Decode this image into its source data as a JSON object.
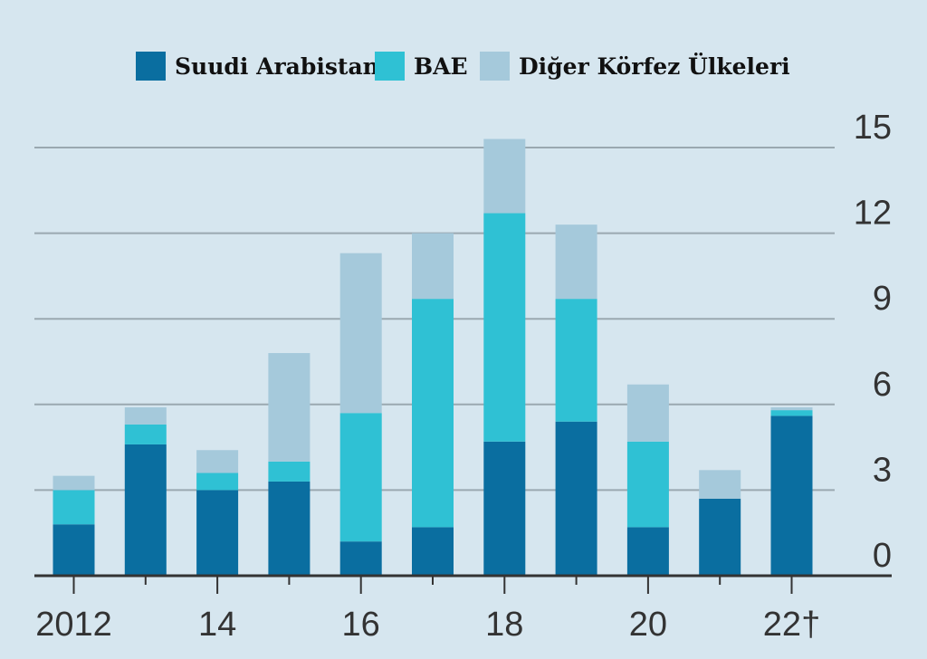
{
  "chart_data": {
    "type": "bar",
    "stacked": true,
    "categories": [
      "2012",
      "2013",
      "2014",
      "2015",
      "2016",
      "2017",
      "2018",
      "2019",
      "2020",
      "2021",
      "2022"
    ],
    "x_tick_labels": [
      "2012",
      "",
      "14",
      "",
      "16",
      "",
      "18",
      "",
      "20",
      "",
      "22†"
    ],
    "series": [
      {
        "name": "Suudi Arabistan",
        "color": "#0a6ea0",
        "values": [
          1.8,
          4.6,
          3.0,
          3.3,
          1.2,
          1.7,
          4.7,
          5.4,
          1.7,
          2.7,
          5.6
        ]
      },
      {
        "name": "BAE",
        "color": "#2fc1d4",
        "values": [
          1.2,
          0.7,
          0.6,
          0.7,
          4.5,
          8.0,
          8.0,
          4.3,
          3.0,
          0.0,
          0.2
        ]
      },
      {
        "name": "Diğer Körfez Ülkeleri",
        "color": "#a5c9db",
        "values": [
          0.5,
          0.6,
          0.8,
          3.8,
          5.6,
          2.3,
          2.6,
          2.6,
          2.0,
          1.0,
          0.1
        ]
      }
    ],
    "y_ticks": [
      "0",
      "3",
      "6",
      "9",
      "12",
      "15"
    ],
    "ylim": [
      0,
      15
    ],
    "y_axis_position": "right",
    "grid": true,
    "legend_position": "top-center",
    "title": "",
    "xlabel": "",
    "ylabel": ""
  }
}
